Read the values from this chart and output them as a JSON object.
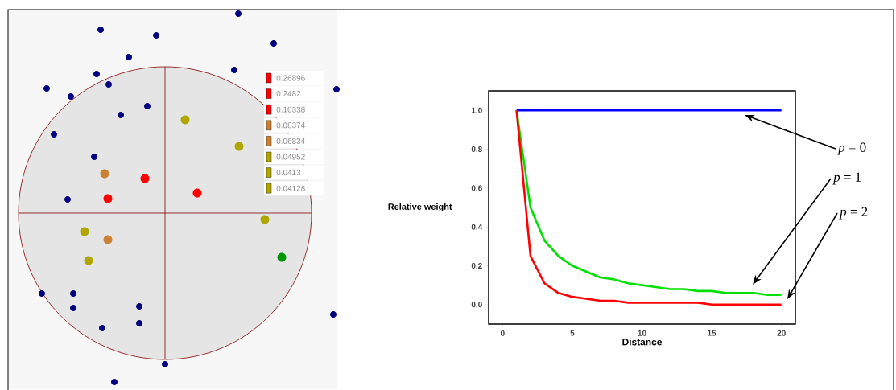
{
  "chart_data": [
    {
      "type": "other",
      "annotations": [
        "0.26896",
        "0.2482",
        "0.10338",
        "0.08374",
        "0.06834",
        "0.04952",
        "0.0413",
        "0.04128"
      ]
    },
    {
      "type": "line",
      "xlabel": "Distance",
      "ylabel": "Relative weight",
      "xlim": [
        -1,
        21
      ],
      "ylim": [
        -0.1,
        1.1
      ],
      "xticks": [
        0,
        5,
        10,
        15,
        20
      ],
      "yticks": [
        {
          "value": 0,
          "label": "0.0"
        },
        {
          "value": 0.2,
          "label": "0.2"
        },
        {
          "value": 0.4,
          "label": "0.4"
        },
        {
          "value": 0.6,
          "label": "0.6"
        },
        {
          "value": 0.8,
          "label": "0.8"
        },
        {
          "value": 1,
          "label": "1.0"
        }
      ],
      "x": [
        1,
        2,
        3,
        4,
        5,
        6,
        7,
        8,
        9,
        10,
        11,
        12,
        13,
        14,
        15,
        16,
        17,
        18,
        19,
        20
      ],
      "series": [
        {
          "name": "*p* = 0",
          "color": "#0000ff",
          "values": [
            1,
            1,
            1,
            1,
            1,
            1,
            1,
            1,
            1,
            1,
            1,
            1,
            1,
            1,
            1,
            1,
            1,
            1,
            1,
            1
          ]
        },
        {
          "name": "*p* = 1",
          "color": "#00e000",
          "values": [
            1,
            0.5,
            0.33,
            0.25,
            0.2,
            0.17,
            0.14,
            0.13,
            0.11,
            0.1,
            0.09,
            0.08,
            0.08,
            0.07,
            0.07,
            0.06,
            0.06,
            0.06,
            0.05,
            0.05
          ]
        },
        {
          "name": "*p* = 2",
          "color": "#ff0000",
          "values": [
            1,
            0.25,
            0.11,
            0.06,
            0.04,
            0.03,
            0.02,
            0.02,
            0.01,
            0.01,
            0.01,
            0.01,
            0.01,
            0.01,
            0.0,
            0.0,
            0.0,
            0.0,
            0.0,
            0.0
          ]
        }
      ],
      "line_style": "solid"
    }
  ]
}
